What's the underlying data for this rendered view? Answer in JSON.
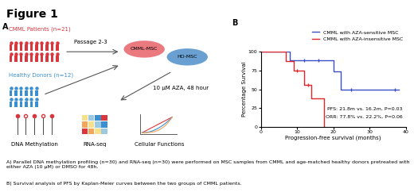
{
  "figure_title": "Figure 1",
  "panel_a": {
    "label": "A",
    "groups": [
      {
        "label": "CMML Patients (n=21)",
        "color": "#d9363e"
      },
      {
        "label": "Healthy Donors (n=12)",
        "color": "#3a8fd0"
      }
    ],
    "passage": "Passage 2-3",
    "cells": [
      {
        "label": "CMML-MSC",
        "color": "#e8626a"
      },
      {
        "label": "HD-MSC",
        "color": "#4f8fc9"
      }
    ],
    "treatment": "10 µM AZA, 48 hour",
    "assays": [
      "DNA Methylation",
      "RNA-seq",
      "Cellular Functions"
    ]
  },
  "chart_data": {
    "type": "step",
    "panel_label": "B",
    "xlabel": "Progression-free survival (months)",
    "ylabel": "Percentage Survival",
    "xlim": [
      0,
      40
    ],
    "xticks": [
      0,
      10,
      20,
      30,
      40
    ],
    "ylim": [
      0,
      100
    ],
    "yticks": [
      0,
      25,
      50,
      75,
      100
    ],
    "legend": "upper right",
    "series": [
      {
        "name": "CMML with AZA-sensitive MSC",
        "color": "#3b4fc4",
        "marker": "|",
        "x": [
          0,
          8,
          20,
          22,
          38
        ],
        "values": [
          100,
          88.9,
          74.1,
          49.4,
          49.4
        ],
        "censored": {
          "x": [
            12,
            16,
            25,
            37
          ],
          "values": [
            88.9,
            88.9,
            49.4,
            49.4
          ]
        }
      },
      {
        "name": "CMML with AZA-insensitive MSC",
        "color": "#e0262b",
        "marker": "|",
        "x": [
          0,
          7,
          9,
          12,
          14,
          17.5
        ],
        "values": [
          100,
          87.5,
          75,
          56.3,
          37.5,
          0
        ],
        "censored": {
          "x": [
            10,
            13
          ],
          "values": [
            75,
            56.3
          ]
        }
      }
    ],
    "annotations": [
      "PFS: 21.8m vs. 16.2m, P=0.03",
      "ORR: 77.8% vs. 22.2%, P=0.06"
    ]
  },
  "caption": [
    "A) Parallel DNA methylation profiling (n=30) and RNA-seq (n=30) were performed on MSC samples from CMML and age-matched healthy donors pretreated with either AZA (10 µM) or DMSO for 48h.",
    "B) Survival analysis of PFS by Kaplan-Meier curves between the two groups of CMML patients."
  ]
}
